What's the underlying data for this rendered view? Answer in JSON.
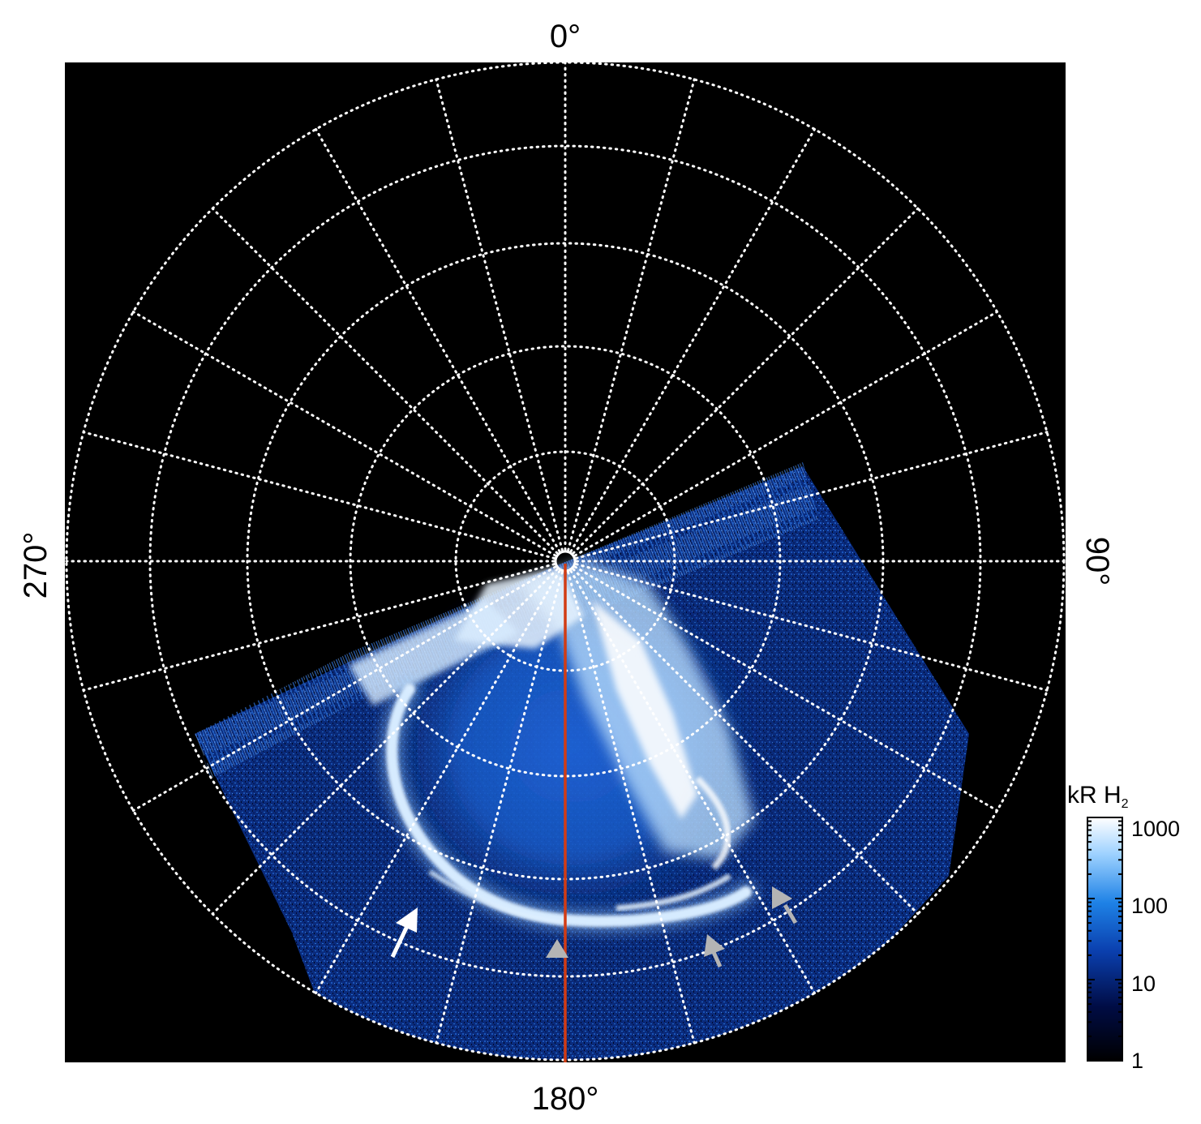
{
  "labels": {
    "top": "0°",
    "bottom": "180°",
    "left": "270°",
    "right": "90°"
  },
  "colorbar": {
    "title_main": "kR H",
    "title_sub": "2",
    "ticks": [
      "1000",
      "100",
      "10",
      "1"
    ],
    "tick_values": [
      1000,
      100,
      10,
      1
    ],
    "range": [
      1,
      1000
    ],
    "scale": "log",
    "colors": [
      "#000000",
      "#000c44",
      "#0a3fae",
      "#1e82e6",
      "#9ed2ff",
      "#ffffff"
    ]
  },
  "colors": {
    "background": "#000000",
    "grid": "#ffffff",
    "meridian_line": "#d23c14",
    "arrow_white": "#ffffff",
    "arrow_gray": "#b4b4b4"
  },
  "grid": {
    "style": "dotted",
    "meridian_spacing_deg": 15
  }
}
